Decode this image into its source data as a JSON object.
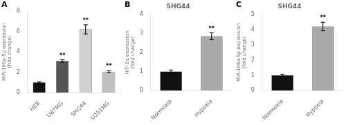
{
  "chart_data": [
    {
      "type": "bar",
      "panel": "A",
      "categories": [
        "HEB",
        "U87MG",
        "SHG44",
        "U251MG"
      ],
      "values": [
        1.0,
        3.1,
        6.2,
        2.05
      ],
      "errors": [
        0.07,
        0.12,
        0.45,
        0.1
      ],
      "colors": [
        "#111111",
        "#555555",
        "#d0d0d0",
        "#c0c0c0"
      ],
      "sig_labels": [
        null,
        "**",
        "**",
        "**"
      ],
      "ylabel": "MiR-106a-5p expression\n(fold change)",
      "ylim": [
        0,
        8
      ],
      "yticks": [
        0,
        2,
        4,
        6,
        8
      ],
      "grid": false
    },
    {
      "type": "bar",
      "panel": "B",
      "title": "SHG44",
      "categories": [
        "Normoxia",
        "Hypoxia"
      ],
      "values": [
        1.0,
        2.85
      ],
      "errors": [
        0.08,
        0.18
      ],
      "colors": [
        "#111111",
        "#aaaaaa"
      ],
      "sig_labels": [
        null,
        "**"
      ],
      "ylabel": "HIF-1α expression\n(fold change)",
      "ylim": [
        0,
        4
      ],
      "yticks": [
        0,
        1,
        2,
        3,
        4
      ],
      "grid": false
    },
    {
      "type": "bar",
      "panel": "C",
      "title": "SHG44",
      "categories": [
        "Normoxia",
        "Hypoxia"
      ],
      "values": [
        1.0,
        4.2
      ],
      "errors": [
        0.07,
        0.28
      ],
      "colors": [
        "#111111",
        "#aaaaaa"
      ],
      "sig_labels": [
        null,
        "**"
      ],
      "ylabel": "MiR-106a-5p expression\n(fold change)",
      "ylim": [
        0,
        5
      ],
      "yticks": [
        0,
        1,
        2,
        3,
        4,
        5
      ],
      "grid": false
    }
  ]
}
